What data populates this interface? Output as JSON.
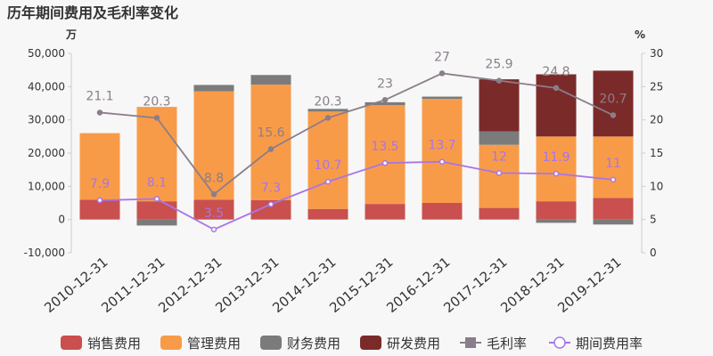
{
  "chart_data": {
    "type": "bar",
    "title": "历年期间费用及毛利率变化",
    "left_unit": "万",
    "right_unit": "%",
    "categories": [
      "2010-12-31",
      "2011-12-31",
      "2012-12-31",
      "2013-12-31",
      "2014-12-31",
      "2015-12-31",
      "2016-12-31",
      "2017-12-31",
      "2018-12-31",
      "2019-12-31"
    ],
    "left_axis": {
      "min": -10000,
      "max": 50000,
      "ticks": [
        -10000,
        0,
        10000,
        20000,
        30000,
        40000,
        50000
      ],
      "tick_labels": [
        "-10,000",
        "0",
        "10,000",
        "20,000",
        "30,000",
        "40,000",
        "50,000"
      ]
    },
    "right_axis": {
      "min": 0,
      "max": 30,
      "ticks": [
        0,
        5,
        10,
        15,
        20,
        25,
        30
      ],
      "tick_labels": [
        "0",
        "5",
        "10",
        "15",
        "20",
        "25",
        "30"
      ]
    },
    "bar_series": [
      {
        "name": "销售费用",
        "color": "#c9504e",
        "values": [
          6000,
          5500,
          6000,
          5800,
          3200,
          4700,
          5000,
          3500,
          5500,
          6500
        ]
      },
      {
        "name": "管理费用",
        "color": "#f89b49",
        "values": [
          20000,
          28400,
          32600,
          34800,
          29300,
          29700,
          31300,
          19000,
          19500,
          18500
        ]
      },
      {
        "name": "财务费用",
        "color": "#7b7b7b",
        "values": [
          0,
          -1800,
          1900,
          2900,
          800,
          900,
          700,
          4000,
          -1000,
          -1500
        ]
      },
      {
        "name": "研发费用",
        "color": "#7b2a2a",
        "values": [
          0,
          0,
          0,
          0,
          0,
          0,
          0,
          15700,
          18700,
          19800
        ]
      }
    ],
    "line_series": [
      {
        "name": "毛利率",
        "color": "#8a7e8a",
        "values": [
          21.1,
          20.3,
          8.8,
          15.6,
          20.3,
          23,
          27,
          25.9,
          24.8,
          20.7
        ],
        "labels": [
          "21.1",
          "20.3",
          "8.8",
          "15.6",
          "20.3",
          "23",
          "27",
          "25.9",
          "24.8",
          "20.7"
        ]
      },
      {
        "name": "期间费用率",
        "color": "#a875e6",
        "values": [
          7.9,
          8.1,
          3.5,
          7.3,
          10.7,
          13.5,
          13.7,
          12,
          11.9,
          11
        ],
        "labels": [
          "7.9",
          "8.1",
          "3.5",
          "7.3",
          "10.7",
          "13.5",
          "13.7",
          "12",
          "11.9",
          "11"
        ]
      }
    ],
    "legend": [
      "销售费用",
      "管理费用",
      "财务费用",
      "研发费用",
      "毛利率",
      "期间费用率"
    ],
    "legend_position": "bottom",
    "grid": false
  }
}
